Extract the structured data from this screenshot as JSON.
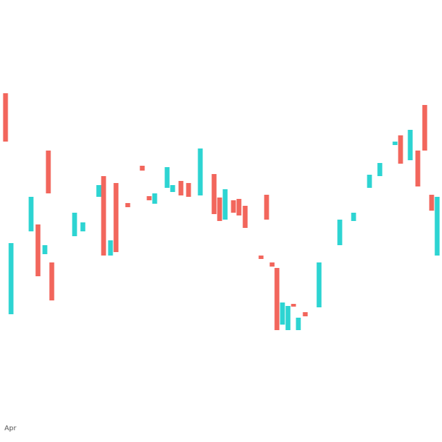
{
  "chart_data": {
    "type": "candlestick",
    "x": [
      0.8,
      1.6,
      4.5,
      5.5,
      6.5,
      7,
      7.5,
      10.8,
      12,
      14.3,
      15,
      16,
      16.8,
      18.5,
      20.6,
      21.6,
      22.4,
      24.2,
      25,
      26.2,
      27.3,
      29,
      31,
      31.8,
      32.6,
      33.8,
      34.6,
      35.5,
      37.8,
      38.6,
      39.4,
      40.1,
      40.9,
      41.7,
      42.5,
      43.2,
      44.2,
      46.2,
      49.2,
      51.2,
      53.5,
      55,
      57.2,
      58,
      59.4,
      60.5,
      61.5,
      62.5,
      63.3
    ],
    "open": [
      505,
      185,
      305,
      315,
      272,
      422,
      260,
      298,
      305,
      355,
      385,
      270,
      375,
      346,
      400,
      356,
      345,
      368,
      362,
      378,
      375,
      357,
      388,
      354,
      322,
      350,
      352,
      342,
      270,
      358,
      260,
      252,
      170,
      162,
      200,
      162,
      188,
      195,
      285,
      320,
      368,
      385,
      430,
      444,
      408,
      422,
      488,
      358,
      270
    ],
    "close": [
      435,
      288,
      355,
      240,
      285,
      360,
      205,
      332,
      318,
      372,
      270,
      292,
      275,
      340,
      393,
      350,
      360,
      398,
      372,
      357,
      355,
      425,
      330,
      320,
      366,
      332,
      328,
      310,
      265,
      322,
      254,
      162,
      202,
      197,
      196,
      180,
      182,
      260,
      322,
      332,
      387,
      404,
      435,
      403,
      452,
      370,
      422,
      335,
      355
    ],
    "up_color": "#2dd4d2",
    "down_color": "#f2665c",
    "xlim": [
      0,
      64
    ],
    "ylim": [
      0,
      640
    ],
    "xticks": [
      {
        "value": 1.5,
        "label": "Apr"
      }
    ]
  }
}
